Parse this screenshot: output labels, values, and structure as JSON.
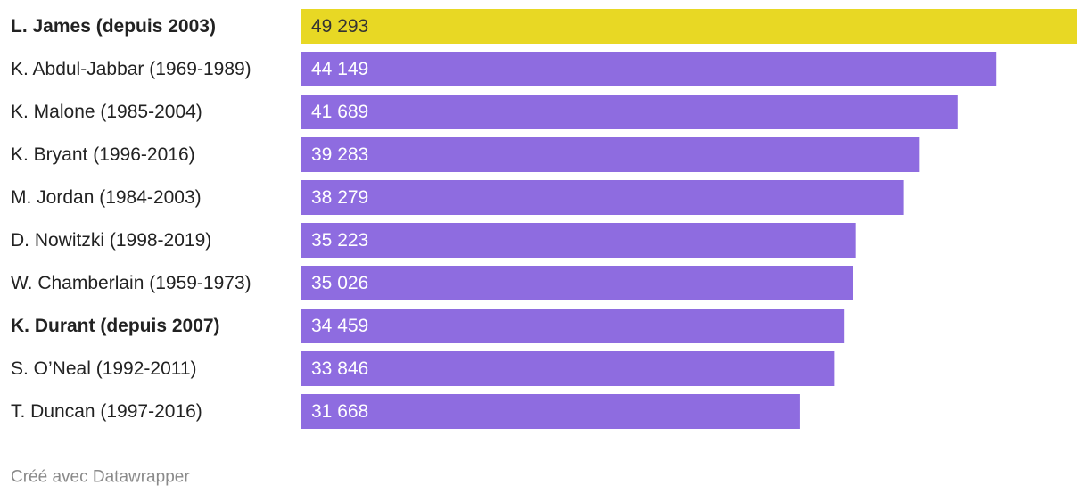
{
  "chart_data": {
    "type": "bar",
    "orientation": "horizontal",
    "categories": [
      "L. James (depuis 2003)",
      "K. Abdul-Jabbar (1969-1989)",
      "K. Malone (1985-2004)",
      "K. Bryant (1996-2016)",
      "M. Jordan (1984-2003)",
      "D. Nowitzki (1998-2019)",
      "W. Chamberlain (1959-1973)",
      "K. Durant (depuis 2007)",
      "S. O’Neal (1992-2011)",
      "T. Duncan (1997-2016)"
    ],
    "values": [
      49293,
      44149,
      41689,
      39283,
      38279,
      35223,
      35026,
      34459,
      33846,
      31668
    ],
    "value_labels": [
      "49 293",
      "44 149",
      "41 689",
      "39 283",
      "38 279",
      "35 223",
      "35 026",
      "34 459",
      "33 846",
      "31 668"
    ],
    "colors": [
      "#e8d824",
      "#8e6ce0",
      "#8e6ce0",
      "#8e6ce0",
      "#8e6ce0",
      "#8e6ce0",
      "#8e6ce0",
      "#8e6ce0",
      "#8e6ce0",
      "#8e6ce0"
    ],
    "bold": [
      true,
      false,
      false,
      false,
      false,
      false,
      false,
      true,
      false,
      false
    ],
    "credit": "Créé avec Datawrapper"
  }
}
